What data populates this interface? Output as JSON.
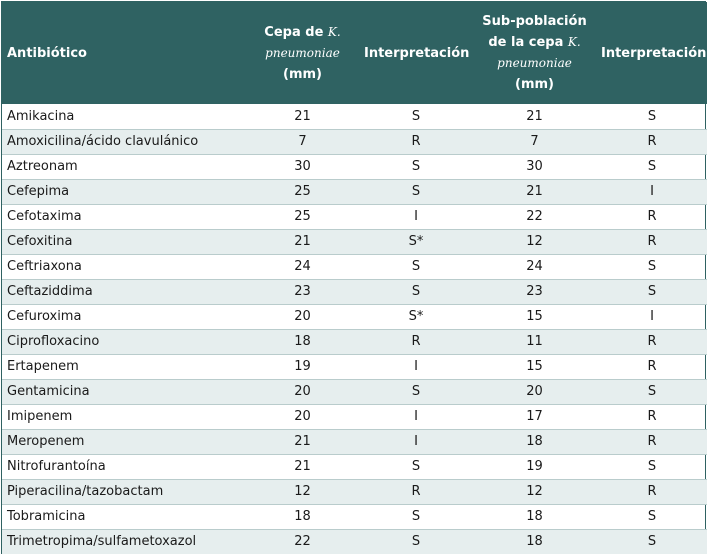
{
  "table": {
    "headers": {
      "antibiotic": "Antibiótico",
      "strain_line1_pre": "Cepa de ",
      "strain_line1_ital": "K.",
      "strain_line2_ital": "pneumoniae",
      "strain_line3": "(mm)",
      "interp1": "Interpretación",
      "sub_line1": "Sub-población",
      "sub_line2_pre": "de la cepa ",
      "sub_line2_ital": "K.",
      "sub_line3_ital": "pneumoniae",
      "sub_line4": "(mm)",
      "interp2": "Interpretación"
    },
    "rows": [
      {
        "antibiotic": "Amikacina",
        "strain_mm": "21",
        "strain_interp": "S",
        "sub_mm": "21",
        "sub_interp": "S"
      },
      {
        "antibiotic": "Amoxicilina/ácido clavulánico",
        "strain_mm": "7",
        "strain_interp": "R",
        "sub_mm": "7",
        "sub_interp": "R"
      },
      {
        "antibiotic": "Aztreonam",
        "strain_mm": "30",
        "strain_interp": "S",
        "sub_mm": "30",
        "sub_interp": "S"
      },
      {
        "antibiotic": "Cefepima",
        "strain_mm": "25",
        "strain_interp": "S",
        "sub_mm": "21",
        "sub_interp": "I"
      },
      {
        "antibiotic": "Cefotaxima",
        "strain_mm": "25",
        "strain_interp": "I",
        "sub_mm": "22",
        "sub_interp": "R"
      },
      {
        "antibiotic": "Cefoxitina",
        "strain_mm": "21",
        "strain_interp": "S*",
        "sub_mm": "12",
        "sub_interp": "R"
      },
      {
        "antibiotic": "Ceftriaxona",
        "strain_mm": "24",
        "strain_interp": "S",
        "sub_mm": "24",
        "sub_interp": "S"
      },
      {
        "antibiotic": "Ceftaziddima",
        "strain_mm": "23",
        "strain_interp": "S",
        "sub_mm": "23",
        "sub_interp": "S"
      },
      {
        "antibiotic": "Cefuroxima",
        "strain_mm": "20",
        "strain_interp": "S*",
        "sub_mm": "15",
        "sub_interp": "I"
      },
      {
        "antibiotic": "Ciprofloxacino",
        "strain_mm": "18",
        "strain_interp": "R",
        "sub_mm": "11",
        "sub_interp": "R"
      },
      {
        "antibiotic": "Ertapenem",
        "strain_mm": "19",
        "strain_interp": "I",
        "sub_mm": "15",
        "sub_interp": "R"
      },
      {
        "antibiotic": "Gentamicina",
        "strain_mm": "20",
        "strain_interp": "S",
        "sub_mm": "20",
        "sub_interp": "S"
      },
      {
        "antibiotic": "Imipenem",
        "strain_mm": "20",
        "strain_interp": "I",
        "sub_mm": "17",
        "sub_interp": "R"
      },
      {
        "antibiotic": "Meropenem",
        "strain_mm": "21",
        "strain_interp": "I",
        "sub_mm": "18",
        "sub_interp": "R"
      },
      {
        "antibiotic": "Nitrofurantoína",
        "strain_mm": "21",
        "strain_interp": "S",
        "sub_mm": "19",
        "sub_interp": "S"
      },
      {
        "antibiotic": "Piperacilina/tazobactam",
        "strain_mm": "12",
        "strain_interp": "R",
        "sub_mm": "12",
        "sub_interp": "R"
      },
      {
        "antibiotic": "Tobramicina",
        "strain_mm": "18",
        "strain_interp": "S",
        "sub_mm": "18",
        "sub_interp": "S"
      },
      {
        "antibiotic": "Trimetropima/sulfametoxazol",
        "strain_mm": "22",
        "strain_interp": "S",
        "sub_mm": "18",
        "sub_interp": "S"
      }
    ]
  },
  "colors": {
    "header_bg": "#2f6262",
    "row_alt_bg": "#e6eeee",
    "row_border": "#b9cccc"
  }
}
